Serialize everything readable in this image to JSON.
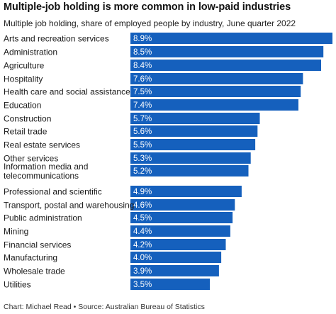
{
  "header": {
    "title": "Multiple-job holding is more common in low-paid industries",
    "subtitle": "Multiple job holding, share of employed people by industry, June quarter 2022"
  },
  "footer": {
    "credit": "Chart: Michael Read • Source: Australian Bureau of Statistics"
  },
  "colors": {
    "bar": "#1560bd",
    "label_text": "#ffffff"
  },
  "chart_data": {
    "type": "bar",
    "orientation": "horizontal",
    "title": "Multiple-job holding is more common in low-paid industries",
    "subtitle": "Multiple job holding, share of employed people by industry, June quarter 2022",
    "categories": [
      "Arts and recreation services",
      "Administration",
      "Agriculture",
      "Hospitality",
      "Health care and social assistance",
      "Education",
      "Construction",
      "Retail trade",
      "Real estate services",
      "Other services",
      "Information media and telecommunications",
      "Professional and scientific",
      "Transport, postal and warehousing",
      "Public administration",
      "Mining",
      "Financial services",
      "Manufacturing",
      "Wholesale trade",
      "Utilities"
    ],
    "category_lines": [
      [
        "Arts and recreation services"
      ],
      [
        "Administration"
      ],
      [
        "Agriculture"
      ],
      [
        "Hospitality"
      ],
      [
        "Health care and social assistance"
      ],
      [
        "Education"
      ],
      [
        "Construction"
      ],
      [
        "Retail trade"
      ],
      [
        "Real estate services"
      ],
      [
        "Other services"
      ],
      [
        "Information media and",
        "telecommunications"
      ],
      [
        "Professional and scientific"
      ],
      [
        "Transport, postal and warehousing"
      ],
      [
        "Public administration"
      ],
      [
        "Mining"
      ],
      [
        "Financial services"
      ],
      [
        "Manufacturing"
      ],
      [
        "Wholesale trade"
      ],
      [
        "Utilities"
      ]
    ],
    "values": [
      8.9,
      8.5,
      8.4,
      7.6,
      7.5,
      7.4,
      5.7,
      5.6,
      5.5,
      5.3,
      5.2,
      4.9,
      4.6,
      4.5,
      4.4,
      4.2,
      4.0,
      3.9,
      3.5
    ],
    "value_labels": [
      "8.9%",
      "8.5%",
      "8.4%",
      "7.6%",
      "7.5%",
      "7.4%",
      "5.7%",
      "5.6%",
      "5.5%",
      "5.3%",
      "5.2%",
      "4.9%",
      "4.6%",
      "4.5%",
      "4.4%",
      "4.2%",
      "4.0%",
      "3.9%",
      "3.5%"
    ],
    "unit": "%",
    "xlim": [
      0,
      8.9
    ],
    "grid": false,
    "legend": "none"
  }
}
